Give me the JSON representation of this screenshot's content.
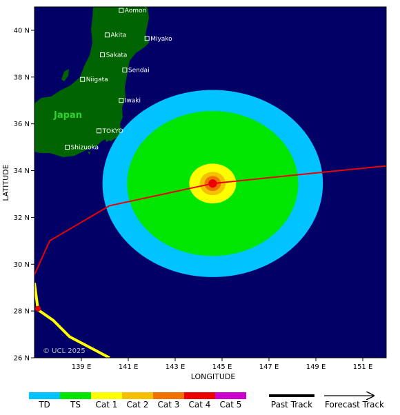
{
  "map": {
    "lon_range": [
      137.0,
      152.0
    ],
    "lat_range": [
      26.0,
      41.0
    ],
    "ocean_color": "#000066",
    "land_color": "#006400",
    "x_axis_title": "LONGITUDE",
    "y_axis_title": "LATITUDE",
    "x_ticks": [
      {
        "value": 139,
        "label": "139 E"
      },
      {
        "value": 141,
        "label": "141 E"
      },
      {
        "value": 143,
        "label": "143 E"
      },
      {
        "value": 145,
        "label": "145 E"
      },
      {
        "value": 147,
        "label": "147 E"
      },
      {
        "value": 149,
        "label": "149 E"
      },
      {
        "value": 151,
        "label": "151 E"
      }
    ],
    "y_ticks": [
      {
        "value": 26,
        "label": "26 N"
      },
      {
        "value": 28,
        "label": "28 N"
      },
      {
        "value": 30,
        "label": "30 N"
      },
      {
        "value": 32,
        "label": "32 N"
      },
      {
        "value": 34,
        "label": "34 N"
      },
      {
        "value": 36,
        "label": "36 N"
      },
      {
        "value": 38,
        "label": "38 N"
      },
      {
        "value": 40,
        "label": "40 N"
      }
    ],
    "country_label": "Japan",
    "copyright": "© UCL 2025",
    "cities": [
      {
        "name": "Aomori",
        "lon": 140.7,
        "lat": 40.85
      },
      {
        "name": "Akita",
        "lon": 140.1,
        "lat": 39.8
      },
      {
        "name": "Miyako",
        "lon": 141.8,
        "lat": 39.65
      },
      {
        "name": "Sakata",
        "lon": 139.9,
        "lat": 38.95
      },
      {
        "name": "Sendai",
        "lon": 140.85,
        "lat": 38.3
      },
      {
        "name": "Niigata",
        "lon": 139.05,
        "lat": 37.9
      },
      {
        "name": "Iwaki",
        "lon": 140.7,
        "lat": 37.0
      },
      {
        "name": "TOKYO",
        "lon": 139.75,
        "lat": 35.7
      },
      {
        "name": "Shizuoka",
        "lon": 138.4,
        "lat": 35.0
      }
    ]
  },
  "storm": {
    "center": {
      "lon": 144.6,
      "lat": 33.45
    },
    "wind_fields": [
      {
        "category": "TD",
        "radius_lon": 4.7,
        "radius_lat": 4.0,
        "color": "#00c3ff"
      },
      {
        "category": "TS",
        "radius_lon": 3.65,
        "radius_lat": 3.1,
        "color": "#00e600"
      },
      {
        "category": "Cat 1",
        "radius_lon": 1.0,
        "radius_lat": 0.85,
        "color": "#ffff00"
      },
      {
        "category": "Cat 2",
        "radius_lon": 0.55,
        "radius_lat": 0.5,
        "color": "#f5c000"
      },
      {
        "category": "Cat 3",
        "radius_lon": 0.35,
        "radius_lat": 0.32,
        "color": "#f07000"
      },
      {
        "category": "Cat 4",
        "radius_lon": 0.18,
        "radius_lat": 0.18,
        "color": "#ee0000"
      }
    ],
    "past_track_a": [
      {
        "lon": 137.0,
        "lat": 29.55
      },
      {
        "lon": 137.65,
        "lat": 31.0
      },
      {
        "lon": 140.2,
        "lat": 32.5
      },
      {
        "lon": 144.6,
        "lat": 33.45
      },
      {
        "lon": 148.0,
        "lat": 33.8
      },
      {
        "lon": 152.0,
        "lat": 34.2
      }
    ],
    "past_track_a_color": "#ee0000",
    "past_track_b": [
      {
        "lon": 137.0,
        "lat": 29.2
      },
      {
        "lon": 137.15,
        "lat": 28.05
      },
      {
        "lon": 137.8,
        "lat": 27.6
      },
      {
        "lon": 138.5,
        "lat": 26.9
      },
      {
        "lon": 140.2,
        "lat": 26.0
      }
    ],
    "past_track_b_color": "#ffff00",
    "marker": {
      "lon": 137.15,
      "lat": 28.1,
      "color": "#ee0000"
    }
  },
  "legend": {
    "categories": [
      {
        "label": "TD",
        "color": "#00c3ff"
      },
      {
        "label": "TS",
        "color": "#00e600"
      },
      {
        "label": "Cat 1",
        "color": "#ffff00"
      },
      {
        "label": "Cat 2",
        "color": "#f5c000"
      },
      {
        "label": "Cat 3",
        "color": "#f07000"
      },
      {
        "label": "Cat 4",
        "color": "#ee0000"
      },
      {
        "label": "Cat 5",
        "color": "#cc00cc"
      }
    ],
    "past_track_label": "Past Track",
    "forecast_track_label": "Forecast Track"
  }
}
